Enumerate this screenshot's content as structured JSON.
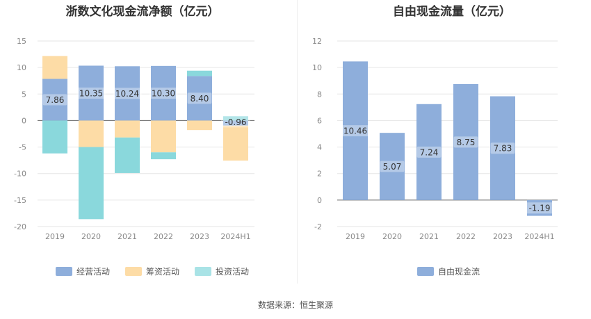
{
  "colors": {
    "operating": "#8eaedb",
    "financing": "#fddca6",
    "investing": "#8ad8dc",
    "fcf": "#8eaedb"
  },
  "source": "数据来源：恒生聚源",
  "chart_data": [
    {
      "type": "bar",
      "stacked": true,
      "title": "浙数文化现金流净额（亿元）",
      "categories": [
        "2019",
        "2020",
        "2021",
        "2022",
        "2023",
        "2024H1"
      ],
      "ylim": [
        -20,
        15
      ],
      "yticks": [
        "15",
        "10",
        "5",
        "0",
        "-5",
        "-10",
        "-15",
        "-20"
      ],
      "series": [
        {
          "name": "经营活动",
          "values": [
            7.86,
            10.35,
            10.24,
            10.3,
            8.4,
            -0.96
          ],
          "labels": [
            "7.86",
            "10.35",
            "10.24",
            "10.30",
            "8.40",
            "-0.96"
          ]
        },
        {
          "name": "筹资活动",
          "values": [
            4.3,
            -5.0,
            -3.2,
            -6.0,
            -1.8,
            -6.6
          ]
        },
        {
          "name": "投资活动",
          "values": [
            -6.2,
            -13.6,
            -6.7,
            -1.3,
            1.0,
            0.8
          ]
        }
      ]
    },
    {
      "type": "bar",
      "title": "自由现金流量（亿元）",
      "categories": [
        "2019",
        "2020",
        "2021",
        "2022",
        "2023",
        "2024H1"
      ],
      "ylim": [
        -2,
        12
      ],
      "yticks": [
        "12",
        "10",
        "8",
        "6",
        "4",
        "2",
        "0",
        "-2"
      ],
      "series": [
        {
          "name": "自由现金流",
          "values": [
            10.46,
            5.07,
            7.24,
            8.75,
            7.83,
            -1.19
          ],
          "labels": [
            "10.46",
            "5.07",
            "7.24",
            "8.75",
            "7.83",
            "-1.19"
          ]
        }
      ]
    }
  ]
}
